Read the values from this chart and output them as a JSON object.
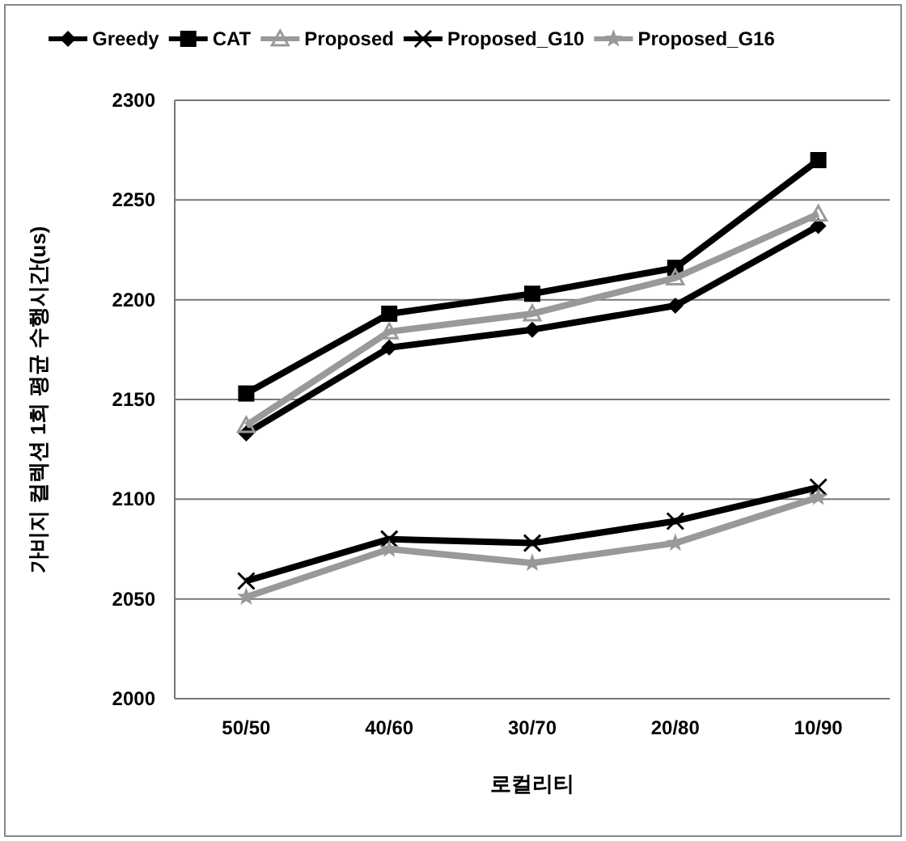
{
  "chart_data": {
    "type": "line",
    "xlabel": "로컬리티",
    "ylabel": "가비지 컬렉션 1회 평균 수행시간(us)",
    "categories": [
      "50/50",
      "40/60",
      "30/70",
      "20/80",
      "10/90"
    ],
    "ylim": [
      2000,
      2300
    ],
    "yticks": [
      2000,
      2050,
      2100,
      2150,
      2200,
      2250,
      2300
    ],
    "grid": "y",
    "legend": "top",
    "line_style": "solid",
    "series": [
      {
        "name": "Greedy",
        "color": "#000000",
        "marker": "diamond",
        "values": [
          2133,
          2176,
          2185,
          2197,
          2237
        ]
      },
      {
        "name": "CAT",
        "color": "#000000",
        "marker": "square",
        "values": [
          2153,
          2193,
          2203,
          2216,
          2270
        ]
      },
      {
        "name": "Proposed",
        "color": "#999999",
        "marker": "triangle",
        "values": [
          2137,
          2184,
          2193,
          2211,
          2243
        ]
      },
      {
        "name": "Proposed_G10",
        "color": "#000000",
        "marker": "cross",
        "values": [
          2059,
          2080,
          2078,
          2089,
          2106
        ]
      },
      {
        "name": "Proposed_G16",
        "color": "#999999",
        "marker": "star",
        "values": [
          2051,
          2075,
          2068,
          2078,
          2101
        ]
      }
    ]
  }
}
